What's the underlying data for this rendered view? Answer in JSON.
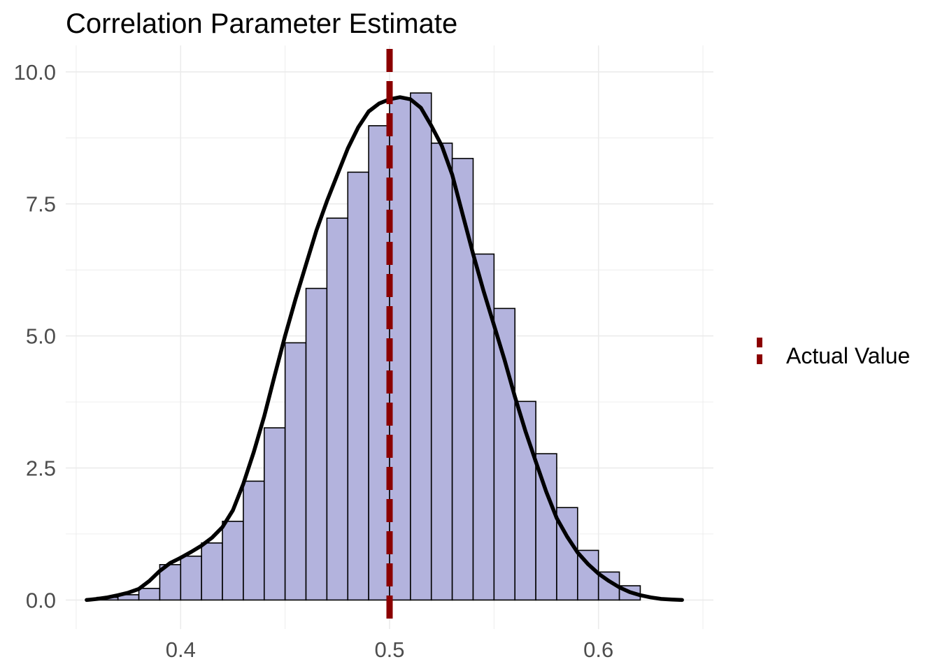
{
  "chart_data": {
    "type": "histogram",
    "title": "Correlation Parameter Estimate",
    "subtitle": "",
    "xlabel": "",
    "ylabel": "",
    "xlim": [
      0.345,
      0.655
    ],
    "ylim": [
      -0.55,
      10.5
    ],
    "x_ticks": [
      "0.4",
      "0.5",
      "0.6"
    ],
    "x_tick_values": [
      0.4,
      0.5,
      0.6
    ],
    "y_ticks": [
      "0.0",
      "2.5",
      "5.0",
      "7.5",
      "10.0"
    ],
    "y_tick_values": [
      0.0,
      2.5,
      5.0,
      7.5,
      10.0
    ],
    "grid": true,
    "bin_width": 0.01,
    "bins": [
      {
        "x0": 0.36,
        "x1": 0.37,
        "density": 0.05
      },
      {
        "x0": 0.37,
        "x1": 0.38,
        "density": 0.1
      },
      {
        "x0": 0.38,
        "x1": 0.39,
        "density": 0.22
      },
      {
        "x0": 0.39,
        "x1": 0.4,
        "density": 0.67
      },
      {
        "x0": 0.4,
        "x1": 0.41,
        "density": 0.83
      },
      {
        "x0": 0.41,
        "x1": 0.42,
        "density": 1.08
      },
      {
        "x0": 0.42,
        "x1": 0.43,
        "density": 1.49
      },
      {
        "x0": 0.43,
        "x1": 0.44,
        "density": 2.25
      },
      {
        "x0": 0.44,
        "x1": 0.45,
        "density": 3.26
      },
      {
        "x0": 0.45,
        "x1": 0.46,
        "density": 4.87
      },
      {
        "x0": 0.46,
        "x1": 0.47,
        "density": 5.9
      },
      {
        "x0": 0.47,
        "x1": 0.48,
        "density": 7.23
      },
      {
        "x0": 0.48,
        "x1": 0.49,
        "density": 8.1
      },
      {
        "x0": 0.49,
        "x1": 0.5,
        "density": 8.98
      },
      {
        "x0": 0.5,
        "x1": 0.51,
        "density": 9.5
      },
      {
        "x0": 0.51,
        "x1": 0.52,
        "density": 9.6
      },
      {
        "x0": 0.52,
        "x1": 0.53,
        "density": 8.65
      },
      {
        "x0": 0.53,
        "x1": 0.54,
        "density": 8.36
      },
      {
        "x0": 0.54,
        "x1": 0.55,
        "density": 6.55
      },
      {
        "x0": 0.55,
        "x1": 0.56,
        "density": 5.52
      },
      {
        "x0": 0.56,
        "x1": 0.57,
        "density": 3.76
      },
      {
        "x0": 0.57,
        "x1": 0.58,
        "density": 2.77
      },
      {
        "x0": 0.58,
        "x1": 0.59,
        "density": 1.75
      },
      {
        "x0": 0.59,
        "x1": 0.6,
        "density": 0.94
      },
      {
        "x0": 0.6,
        "x1": 0.61,
        "density": 0.53
      },
      {
        "x0": 0.61,
        "x1": 0.62,
        "density": 0.27
      }
    ],
    "density_curve": {
      "x": [
        0.355,
        0.36,
        0.365,
        0.37,
        0.375,
        0.38,
        0.385,
        0.39,
        0.395,
        0.4,
        0.405,
        0.41,
        0.415,
        0.42,
        0.425,
        0.43,
        0.435,
        0.44,
        0.445,
        0.45,
        0.455,
        0.46,
        0.465,
        0.47,
        0.475,
        0.48,
        0.485,
        0.49,
        0.495,
        0.5,
        0.505,
        0.51,
        0.515,
        0.52,
        0.525,
        0.53,
        0.535,
        0.54,
        0.545,
        0.55,
        0.555,
        0.56,
        0.565,
        0.57,
        0.575,
        0.58,
        0.585,
        0.59,
        0.595,
        0.6,
        0.605,
        0.61,
        0.615,
        0.62,
        0.625,
        0.63,
        0.635,
        0.64
      ],
      "y": [
        0.0,
        0.02,
        0.05,
        0.09,
        0.14,
        0.21,
        0.36,
        0.55,
        0.7,
        0.8,
        0.91,
        1.03,
        1.18,
        1.38,
        1.7,
        2.2,
        2.8,
        3.48,
        4.25,
        5.0,
        5.7,
        6.35,
        7.0,
        7.55,
        8.05,
        8.55,
        8.95,
        9.25,
        9.4,
        9.48,
        9.52,
        9.48,
        9.32,
        8.98,
        8.6,
        8.05,
        7.3,
        6.55,
        5.85,
        5.2,
        4.55,
        3.85,
        3.2,
        2.62,
        2.05,
        1.55,
        1.2,
        0.9,
        0.68,
        0.5,
        0.36,
        0.24,
        0.15,
        0.09,
        0.05,
        0.02,
        0.01,
        0.0
      ]
    },
    "vline": {
      "x": 0.5,
      "label": "Actual Value",
      "color": "#8b0000",
      "style": "dashed"
    },
    "legend": {
      "position": "right",
      "entries": [
        "Actual Value"
      ]
    },
    "colors": {
      "bar_fill": "#b3b3dd",
      "bar_outline": "#000000",
      "curve": "#000000",
      "grid": "#ebebeb"
    }
  }
}
